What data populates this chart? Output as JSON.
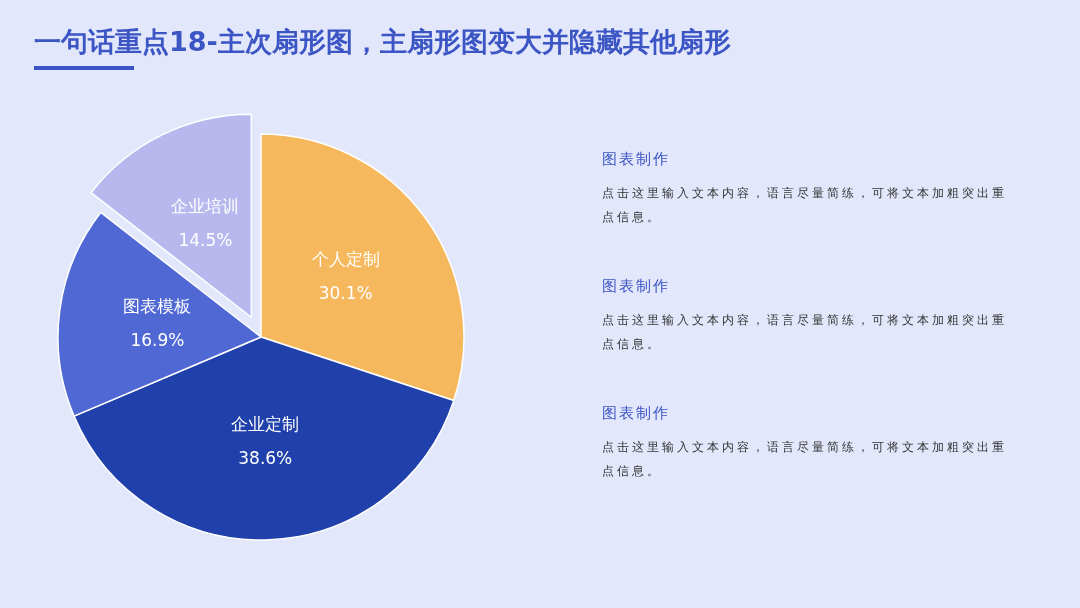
{
  "chart_data": {
    "type": "pie",
    "title": "一句话重点18-主次扇形图，主扇形图变大并隐藏其他扇形",
    "categories": [
      "个人定制",
      "企业定制",
      "图表模板",
      "企业培训"
    ],
    "values": [
      30.1,
      38.6,
      16.9,
      14.5
    ],
    "colors": [
      "#f6b85c",
      "#2041ab",
      "#5068d4",
      "#b8b8ef"
    ],
    "value_labels": [
      "30.1%",
      "38.6%",
      "16.9%",
      "14.5%"
    ],
    "legend": false,
    "annotations": [
      "图表制作",
      "点击这里输入文本内容，语言尽量简练，可将文本加粗突出重点信息。",
      "图表制作",
      "点击这里输入文本内容，语言尽量简练，可将文本加粗突出重点信息。",
      "图表制作",
      "点击这里输入文本内容，语言尽量简练，可将文本加粗突出重点信息。"
    ]
  }
}
